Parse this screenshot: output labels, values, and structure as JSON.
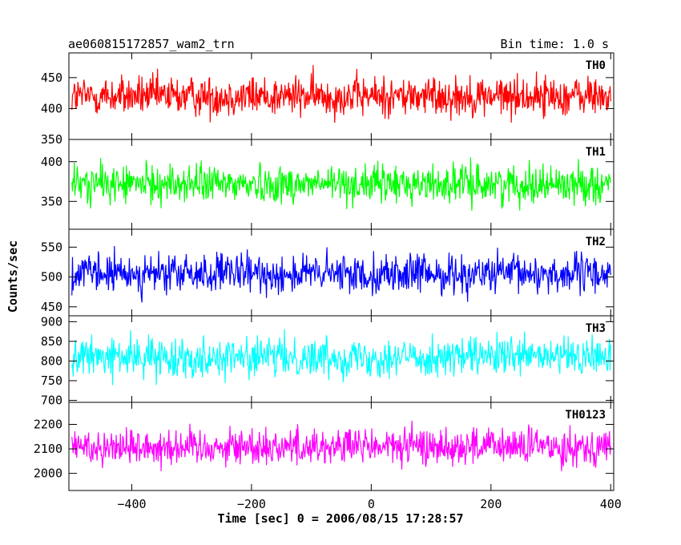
{
  "header": {
    "title_left": "ae060815172857_wam2_trn",
    "title_right": "Bin time: 1.0 s"
  },
  "chart_data": {
    "type": "line",
    "xlabel": "Time [sec] 0 = 2006/08/15 17:28:57",
    "ylabel": "Counts/sec",
    "xlim": [
      -505,
      405
    ],
    "x_range_data": [
      -500,
      400
    ],
    "xticks": [
      -400,
      -200,
      0,
      200,
      400
    ],
    "x_step": 1.0,
    "panels": [
      {
        "name": "TH0",
        "color": "#ff0000",
        "ylim": [
          350,
          490
        ],
        "yticks": [
          350,
          400,
          450
        ],
        "mean": 420,
        "amplitude": 30
      },
      {
        "name": "TH1",
        "color": "#00ff00",
        "ylim": [
          315,
          428
        ],
        "yticks": [
          350,
          400
        ],
        "mean": 372,
        "amplitude": 22
      },
      {
        "name": "TH2",
        "color": "#0000ff",
        "ylim": [
          435,
          580
        ],
        "yticks": [
          450,
          500,
          550
        ],
        "mean": 505,
        "amplitude": 30
      },
      {
        "name": "TH3",
        "color": "#00ffff",
        "ylim": [
          695,
          915
        ],
        "yticks": [
          700,
          750,
          800,
          850,
          900
        ],
        "mean": 810,
        "amplitude": 45
      },
      {
        "name": "TH0123",
        "color": "#ff00ff",
        "ylim": [
          1930,
          2290
        ],
        "yticks": [
          2000,
          2100,
          2200
        ],
        "mean": 2110,
        "amplitude": 70
      }
    ]
  }
}
